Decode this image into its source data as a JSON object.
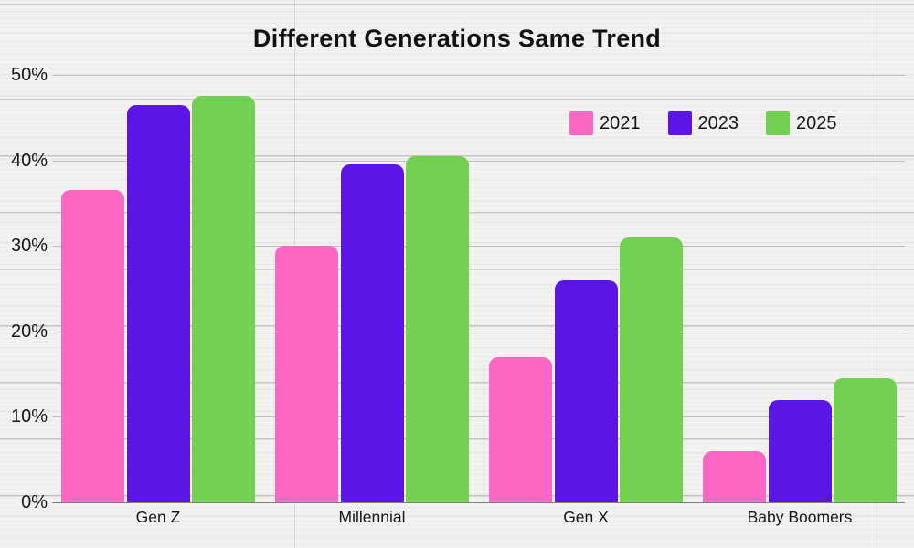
{
  "title": "Different Generations Same Trend",
  "colors": {
    "series_2021": "#fc67c4",
    "series_2023": "#5b15e6",
    "series_2025": "#72d052",
    "text": "#161616",
    "gridline": "#c4c4c2",
    "background": "#f2f2f0"
  },
  "chart_data": {
    "type": "bar",
    "title": "Different Generations Same Trend",
    "categories": [
      "Gen Z",
      "Millennial",
      "Gen X",
      "Baby Boomers"
    ],
    "series": [
      {
        "name": "2021",
        "color": "#fc67c4",
        "values": [
          36.5,
          30,
          17,
          6
        ]
      },
      {
        "name": "2023",
        "color": "#5b15e6",
        "values": [
          46.5,
          39.5,
          26,
          12
        ]
      },
      {
        "name": "2025",
        "color": "#72d052",
        "values": [
          47.5,
          40.5,
          31,
          14.5
        ]
      }
    ],
    "xlabel": "",
    "ylabel": "",
    "ylim": [
      0,
      50
    ],
    "yticks": [
      "0%",
      "10%",
      "20%",
      "30%",
      "40%",
      "50%"
    ],
    "grid": true,
    "legend_position": "top-right",
    "legend_labels": [
      "2021",
      "2023",
      "2025"
    ]
  }
}
